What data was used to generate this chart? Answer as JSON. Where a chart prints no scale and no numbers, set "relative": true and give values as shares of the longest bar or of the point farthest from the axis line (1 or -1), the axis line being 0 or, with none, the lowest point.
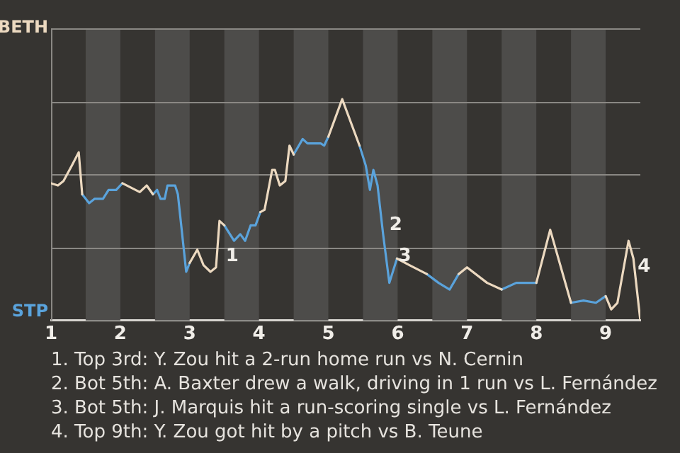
{
  "chart_data": {
    "type": "line",
    "relative": true,
    "x": [
      1,
      1.1,
      1.18,
      1.3,
      1.4,
      1.45,
      1.55,
      1.63,
      1.75,
      1.83,
      1.94,
      2.03,
      2.28,
      2.38,
      2.47,
      2.53,
      2.58,
      2.64,
      2.68,
      2.79,
      2.83,
      2.95,
      3,
      3.11,
      3.2,
      3.3,
      3.38,
      3.43,
      3.5,
      3.64,
      3.73,
      3.8,
      3.88,
      3.95,
      4.02,
      4.08,
      4.19,
      4.23,
      4.3,
      4.38,
      4.44,
      4.5,
      4.63,
      4.7,
      4.89,
      4.94,
      5,
      5.2,
      5.45,
      5.54,
      5.6,
      5.65,
      5.71,
      5.79,
      5.88,
      5.99,
      6.17,
      6.42,
      6.59,
      6.75,
      6.88,
      7,
      7.29,
      7.5,
      7.71,
      8,
      8.2,
      8.5,
      8.68,
      8.86,
      9,
      9.08,
      9.17,
      9.33,
      9.4,
      9.5
    ],
    "series": [
      {
        "name": "BETH",
        "color": "#ecd9c0",
        "values": [
          0.62,
          0.61,
          0.63,
          0.7,
          0.76,
          0.57,
          null,
          null,
          null,
          null,
          null,
          0.62,
          0.58,
          0.61,
          0.57,
          null,
          null,
          null,
          null,
          null,
          null,
          null,
          0.26,
          0.32,
          0.25,
          0.22,
          0.24,
          0.45,
          0.43,
          null,
          null,
          null,
          null,
          null,
          0.49,
          0.5,
          0.68,
          0.68,
          0.61,
          0.63,
          0.79,
          0.75,
          null,
          null,
          null,
          null,
          0.83,
          1,
          0.79,
          null,
          null,
          null,
          null,
          null,
          null,
          0.28,
          0.25,
          0.21,
          null,
          null,
          0.21,
          0.24,
          0.17,
          0.14,
          null,
          0.17,
          0.41,
          0.08,
          null,
          null,
          0.11,
          0.05,
          0.08,
          0.36,
          0.28,
          0
        ]
      },
      {
        "name": "STP",
        "color": "#5aa3dc",
        "values": [
          null,
          null,
          null,
          null,
          null,
          0.57,
          0.53,
          0.55,
          0.55,
          0.59,
          0.59,
          0.62,
          null,
          null,
          0.57,
          0.59,
          0.55,
          0.55,
          0.61,
          0.61,
          0.57,
          0.22,
          0.26,
          null,
          null,
          null,
          null,
          null,
          0.43,
          0.36,
          0.39,
          0.36,
          0.43,
          0.43,
          0.49,
          null,
          null,
          null,
          null,
          null,
          null,
          0.75,
          0.82,
          0.8,
          0.8,
          0.79,
          0.83,
          null,
          0.79,
          0.7,
          0.59,
          0.68,
          0.61,
          0.39,
          0.17,
          0.28,
          null,
          0.21,
          0.17,
          0.14,
          0.21,
          null,
          null,
          0.14,
          0.17,
          0.17,
          null,
          0.08,
          0.09,
          0.08,
          0.11,
          null,
          null,
          null,
          null,
          null
        ]
      }
    ],
    "xlim": [
      1,
      9.5
    ],
    "xticks": [
      1,
      2,
      3,
      4,
      5,
      6,
      7,
      8,
      9
    ],
    "marker": "none",
    "legend": "left",
    "ref_lines": [
      {
        "axis": "y",
        "value": 0.33,
        "color": "#8a8884"
      },
      {
        "axis": "y",
        "value": 0.66,
        "color": "#8a8884"
      },
      {
        "axis": "y",
        "value": 0.99,
        "color": "#8a8884"
      }
    ],
    "bands": [
      {
        "axis": "x",
        "from": 1.5,
        "to": 2,
        "color": "#4d4c4a"
      },
      {
        "axis": "x",
        "from": 2.5,
        "to": 3,
        "color": "#4d4c4a"
      },
      {
        "axis": "x",
        "from": 3.5,
        "to": 4,
        "color": "#4d4c4a"
      },
      {
        "axis": "x",
        "from": 4.5,
        "to": 5,
        "color": "#4d4c4a"
      },
      {
        "axis": "x",
        "from": 5.5,
        "to": 6,
        "color": "#4d4c4a"
      },
      {
        "axis": "x",
        "from": 6.5,
        "to": 7,
        "color": "#4d4c4a"
      },
      {
        "axis": "x",
        "from": 7.5,
        "to": 8,
        "color": "#4d4c4a"
      },
      {
        "axis": "x",
        "from": 8.5,
        "to": 9,
        "color": "#4d4c4a"
      }
    ],
    "annotations": [
      {
        "text": "1",
        "x": 3.46,
        "y": 0.29
      },
      {
        "text": "2",
        "x": 5.82,
        "y": 0.43
      },
      {
        "text": "3",
        "x": 5.95,
        "y": 0.29
      },
      {
        "text": "4",
        "x": 9.4,
        "y": 0.24
      },
      "1. Top 3rd: Y. Zou hit a 2-run home run vs N. Cernin",
      "2. Bot 5th: A. Baxter drew a walk, driving in 1 run vs L. Fernández",
      "3. Bot 5th: J. Marquis hit a run-scoring single vs L. Fernández",
      "4. Top 9th: Y. Zou got hit by a pitch vs B. Teune"
    ]
  }
}
